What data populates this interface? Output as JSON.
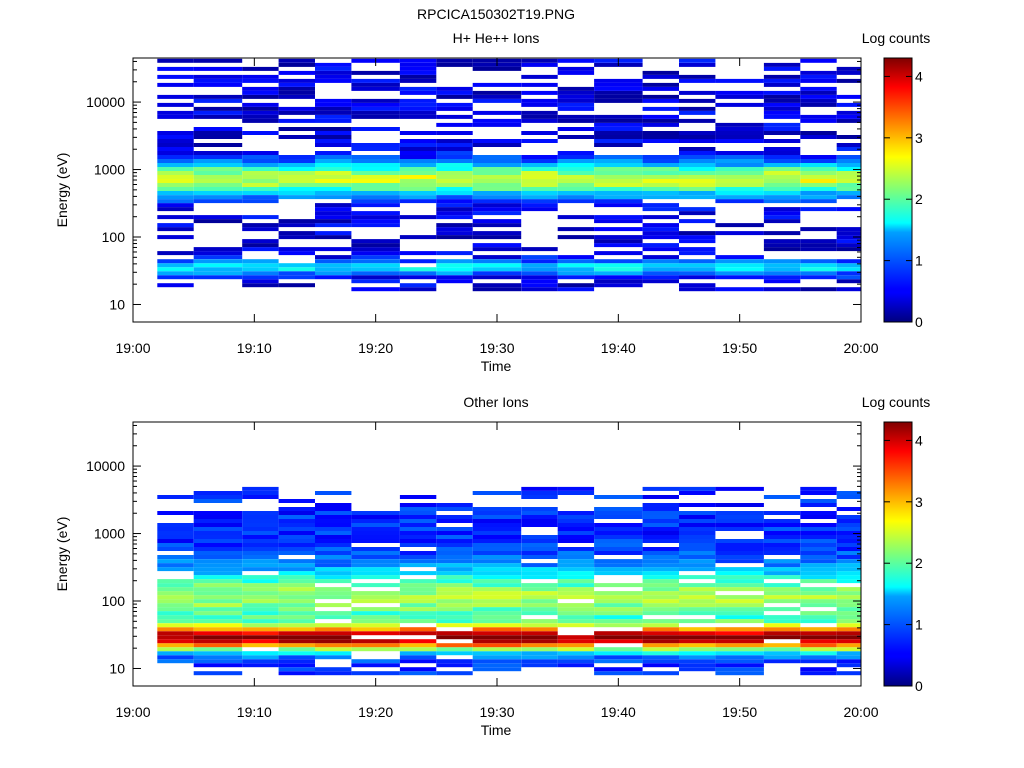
{
  "figure_title": "RPCICA150302T19.PNG",
  "chart_data": [
    {
      "type": "heatmap",
      "title": "H+ He++ Ions",
      "xlabel": "Time",
      "ylabel": "Energy (eV)",
      "colorbar_label": "Log counts",
      "colorbar_range": [
        0,
        4.3
      ],
      "colorbar_ticks": [
        "0",
        "1",
        "2",
        "3",
        "4"
      ],
      "x_range": [
        "19:00",
        "20:00"
      ],
      "x_ticks": [
        "19:00",
        "19:10",
        "19:20",
        "19:30",
        "19:40",
        "19:50",
        "20:00"
      ],
      "y_scale": "log",
      "y_range_eV": [
        5.5,
        45000
      ],
      "y_tick_labels": [
        "10",
        "100",
        "1000",
        "10000"
      ],
      "colormap": "jet",
      "time_bins": [
        "19:02-19:05",
        "19:05-19:09",
        "19:09-19:12",
        "19:12-19:15",
        "19:15-19:18",
        "19:18-19:22",
        "19:22-19:25",
        "19:25-19:28",
        "19:28-19:32",
        "19:32-19:35",
        "19:35-19:38",
        "19:38-19:42",
        "19:42-19:45",
        "19:45-19:48",
        "19:48-19:52",
        "19:52-19:55",
        "19:55-19:58",
        "19:58-20:00"
      ],
      "approx_profile": "Sparse low-count (0-1) speckle from ~15 eV to ~40 keV; main band ~400-1500 eV peaking ~2.5-3 log counts near 700 eV; secondary band ~25-45 eV at ~1-2 log counts."
    },
    {
      "type": "heatmap",
      "title": "Other Ions",
      "xlabel": "Time",
      "ylabel": "Energy (eV)",
      "colorbar_label": "Log counts",
      "colorbar_range": [
        0,
        4.3
      ],
      "colorbar_ticks": [
        "0",
        "1",
        "2",
        "3",
        "4"
      ],
      "x_range": [
        "19:00",
        "20:00"
      ],
      "x_ticks": [
        "19:00",
        "19:10",
        "19:20",
        "19:30",
        "19:40",
        "19:50",
        "20:00"
      ],
      "y_scale": "log",
      "y_range_eV": [
        5.5,
        45000
      ],
      "y_tick_labels": [
        "10",
        "100",
        "1000",
        "10000"
      ],
      "colormap": "jet",
      "time_bins": [
        "19:02-19:05",
        "19:05-19:09",
        "19:09-19:12",
        "19:12-19:15",
        "19:15-19:18",
        "19:18-19:22",
        "19:22-19:25",
        "19:25-19:28",
        "19:28-19:32",
        "19:32-19:35",
        "19:35-19:38",
        "19:38-19:42",
        "19:42-19:45",
        "19:45-19:48",
        "19:48-19:52",
        "19:52-19:55",
        "19:55-19:58",
        "19:58-20:00"
      ],
      "approx_profile": "Intense band ~20-40 eV at ~3.8-4.2 log counts; broad 2.5-3.3 band ~60-200 eV; decreasing to 0.5-1.5 log counts ~300-2500 eV; sparse low counts near 10 eV and above 2 keV."
    }
  ]
}
